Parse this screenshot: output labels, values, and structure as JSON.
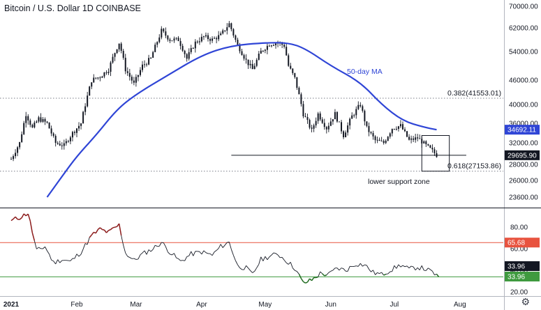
{
  "header": {
    "title": "Bitcoin / U.S. Dollar  1D  COINBASE"
  },
  "chart_data": [
    {
      "type": "candlestick",
      "title": "Bitcoin / U.S. Dollar  1D  COINBASE",
      "y_ticks": [
        23600,
        26000,
        28000,
        32000,
        36000,
        40000,
        46000,
        54000,
        62000,
        70000
      ],
      "y_tick_labels": [
        "23600.00",
        "26000.00",
        "28000.00",
        "32000.00",
        "36000.00",
        "40000.00",
        "46000.00",
        "54000.00",
        "62000.00",
        "70000.00"
      ],
      "x_labels": [
        "2021",
        "Feb",
        "Mar",
        "Apr",
        "May",
        "Jun",
        "Jul",
        "Aug"
      ],
      "price_close_series": [
        {
          "date": "2021-01-01",
          "close": 29000
        },
        {
          "date": "2021-01-05",
          "close": 32000
        },
        {
          "date": "2021-01-08",
          "close": 38000
        },
        {
          "date": "2021-01-11",
          "close": 35000
        },
        {
          "date": "2021-01-14",
          "close": 37000
        },
        {
          "date": "2021-01-18",
          "close": 36000
        },
        {
          "date": "2021-01-22",
          "close": 32000
        },
        {
          "date": "2021-01-26",
          "close": 31500
        },
        {
          "date": "2021-01-30",
          "close": 34000
        },
        {
          "date": "2021-02-03",
          "close": 36000
        },
        {
          "date": "2021-02-08",
          "close": 46000
        },
        {
          "date": "2021-02-12",
          "close": 47000
        },
        {
          "date": "2021-02-16",
          "close": 49000
        },
        {
          "date": "2021-02-21",
          "close": 57000
        },
        {
          "date": "2021-02-24",
          "close": 49000
        },
        {
          "date": "2021-02-28",
          "close": 45000
        },
        {
          "date": "2021-03-04",
          "close": 50000
        },
        {
          "date": "2021-03-08",
          "close": 52000
        },
        {
          "date": "2021-03-13",
          "close": 61000
        },
        {
          "date": "2021-03-17",
          "close": 58000
        },
        {
          "date": "2021-03-21",
          "close": 58000
        },
        {
          "date": "2021-03-25",
          "close": 52000
        },
        {
          "date": "2021-03-29",
          "close": 57000
        },
        {
          "date": "2021-04-02",
          "close": 59000
        },
        {
          "date": "2021-04-06",
          "close": 58000
        },
        {
          "date": "2021-04-10",
          "close": 59500
        },
        {
          "date": "2021-04-14",
          "close": 63500
        },
        {
          "date": "2021-04-18",
          "close": 56000
        },
        {
          "date": "2021-04-22",
          "close": 51500
        },
        {
          "date": "2021-04-25",
          "close": 49000
        },
        {
          "date": "2021-04-29",
          "close": 54000
        },
        {
          "date": "2021-05-03",
          "close": 56500
        },
        {
          "date": "2021-05-07",
          "close": 57000
        },
        {
          "date": "2021-05-10",
          "close": 56000
        },
        {
          "date": "2021-05-12",
          "close": 50000
        },
        {
          "date": "2021-05-15",
          "close": 46500
        },
        {
          "date": "2021-05-19",
          "close": 38000
        },
        {
          "date": "2021-05-23",
          "close": 34500
        },
        {
          "date": "2021-05-26",
          "close": 38000
        },
        {
          "date": "2021-05-30",
          "close": 35000
        },
        {
          "date": "2021-06-03",
          "close": 38000
        },
        {
          "date": "2021-06-07",
          "close": 33500
        },
        {
          "date": "2021-06-11",
          "close": 37500
        },
        {
          "date": "2021-06-15",
          "close": 40000
        },
        {
          "date": "2021-06-18",
          "close": 35000
        },
        {
          "date": "2021-06-22",
          "close": 32500
        },
        {
          "date": "2021-06-26",
          "close": 32000
        },
        {
          "date": "2021-06-30",
          "close": 35000
        },
        {
          "date": "2021-07-04",
          "close": 35500
        },
        {
          "date": "2021-07-08",
          "close": 32500
        },
        {
          "date": "2021-07-12",
          "close": 33000
        },
        {
          "date": "2021-07-16",
          "close": 31500
        },
        {
          "date": "2021-07-19",
          "close": 30500
        },
        {
          "date": "2021-07-21",
          "close": 29695.9
        }
      ],
      "moving_average": {
        "label": "50-day MA",
        "color": "#2f45d6",
        "points": [
          {
            "date": "2021-01-18",
            "value": 23600
          },
          {
            "date": "2021-01-25",
            "value": 26500
          },
          {
            "date": "2021-02-01",
            "value": 29500
          },
          {
            "date": "2021-02-10",
            "value": 33500
          },
          {
            "date": "2021-02-20",
            "value": 39000
          },
          {
            "date": "2021-03-01",
            "value": 42500
          },
          {
            "date": "2021-03-15",
            "value": 47000
          },
          {
            "date": "2021-04-01",
            "value": 53000
          },
          {
            "date": "2021-04-15",
            "value": 56000
          },
          {
            "date": "2021-05-01",
            "value": 57000
          },
          {
            "date": "2021-05-12",
            "value": 57000
          },
          {
            "date": "2021-05-20",
            "value": 55000
          },
          {
            "date": "2021-06-01",
            "value": 50000
          },
          {
            "date": "2021-06-15",
            "value": 45500
          },
          {
            "date": "2021-06-25",
            "value": 40000
          },
          {
            "date": "2021-07-05",
            "value": 36500
          },
          {
            "date": "2021-07-15",
            "value": 35200
          },
          {
            "date": "2021-07-21",
            "value": 34692.11
          }
        ]
      },
      "fib_levels": [
        {
          "label": "0.382(41553.01)",
          "value": 41553.01
        },
        {
          "label": "0.618(27153.86)",
          "value": 27153.86
        }
      ],
      "support_line": {
        "value": 29695.9,
        "from": "2021-04-15",
        "to": "2021-08-04"
      },
      "support_box": {
        "label": "lower support zone",
        "x_from": "2021-07-14",
        "x_to": "2021-07-27",
        "y_from": 27153.86,
        "y_to": 33500
      },
      "price_badges": [
        {
          "value": "34692.11",
          "color": "#2f45d6"
        },
        {
          "value": "29695.90",
          "color": "#131722"
        }
      ]
    },
    {
      "type": "line",
      "title": "",
      "y_ticks": [
        20,
        40,
        60,
        80
      ],
      "y_tick_labels": [
        "20.00",
        "40.00",
        "60.00",
        "80.00"
      ],
      "ylim": [
        15,
        97
      ],
      "overbought": 65.68,
      "oversold": 33.96,
      "rsi_series": [
        {
          "date": "2021-01-01",
          "value": 86
        },
        {
          "date": "2021-01-05",
          "value": 89
        },
        {
          "date": "2021-01-09",
          "value": 93
        },
        {
          "date": "2021-01-13",
          "value": 58
        },
        {
          "date": "2021-01-17",
          "value": 62
        },
        {
          "date": "2021-01-21",
          "value": 47
        },
        {
          "date": "2021-01-25",
          "value": 50
        },
        {
          "date": "2021-01-29",
          "value": 48
        },
        {
          "date": "2021-02-03",
          "value": 57
        },
        {
          "date": "2021-02-08",
          "value": 72
        },
        {
          "date": "2021-02-12",
          "value": 78
        },
        {
          "date": "2021-02-16",
          "value": 75
        },
        {
          "date": "2021-02-21",
          "value": 82
        },
        {
          "date": "2021-02-24",
          "value": 56
        },
        {
          "date": "2021-02-28",
          "value": 49
        },
        {
          "date": "2021-03-04",
          "value": 55
        },
        {
          "date": "2021-03-09",
          "value": 60
        },
        {
          "date": "2021-03-13",
          "value": 66
        },
        {
          "date": "2021-03-17",
          "value": 57
        },
        {
          "date": "2021-03-22",
          "value": 48
        },
        {
          "date": "2021-03-27",
          "value": 55
        },
        {
          "date": "2021-04-01",
          "value": 57
        },
        {
          "date": "2021-04-06",
          "value": 54
        },
        {
          "date": "2021-04-10",
          "value": 62
        },
        {
          "date": "2021-04-14",
          "value": 66
        },
        {
          "date": "2021-04-18",
          "value": 44
        },
        {
          "date": "2021-04-22",
          "value": 42
        },
        {
          "date": "2021-04-25",
          "value": 36
        },
        {
          "date": "2021-04-29",
          "value": 50
        },
        {
          "date": "2021-05-03",
          "value": 53
        },
        {
          "date": "2021-05-07",
          "value": 55
        },
        {
          "date": "2021-05-11",
          "value": 49
        },
        {
          "date": "2021-05-15",
          "value": 42
        },
        {
          "date": "2021-05-19",
          "value": 28
        },
        {
          "date": "2021-05-23",
          "value": 31
        },
        {
          "date": "2021-05-27",
          "value": 37
        },
        {
          "date": "2021-05-31",
          "value": 36
        },
        {
          "date": "2021-06-04",
          "value": 42
        },
        {
          "date": "2021-06-08",
          "value": 40
        },
        {
          "date": "2021-06-13",
          "value": 46
        },
        {
          "date": "2021-06-17",
          "value": 45
        },
        {
          "date": "2021-06-21",
          "value": 38
        },
        {
          "date": "2021-06-25",
          "value": 36
        },
        {
          "date": "2021-06-29",
          "value": 40
        },
        {
          "date": "2021-07-04",
          "value": 45
        },
        {
          "date": "2021-07-08",
          "value": 41
        },
        {
          "date": "2021-07-12",
          "value": 43
        },
        {
          "date": "2021-07-16",
          "value": 41
        },
        {
          "date": "2021-07-19",
          "value": 38
        },
        {
          "date": "2021-07-22",
          "value": 33.96
        }
      ],
      "level_badges": [
        {
          "value": "65.68",
          "color": "#e8533f"
        },
        {
          "value": "33.96",
          "color": "#131722"
        },
        {
          "value": "33.96",
          "color": "#3f9a3f"
        }
      ]
    }
  ],
  "colors": {
    "candle": "#131722",
    "rsi_line": "#131722",
    "rsi_overbought": "#8b1a1a",
    "rsi_oversold": "#1f6b1f",
    "overbought_line": "#e8533f",
    "oversold_line": "#3f9a3f"
  },
  "icons": {
    "settings": "gear-icon"
  }
}
